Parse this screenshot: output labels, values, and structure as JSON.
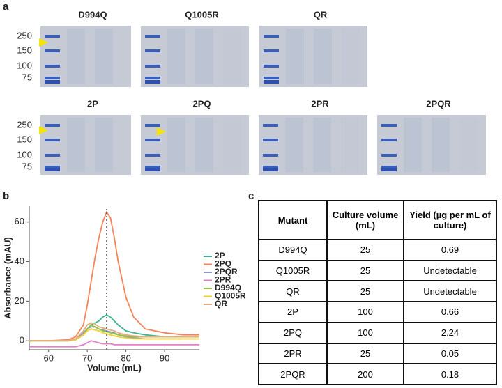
{
  "panel_labels": [
    "a",
    "b",
    "c"
  ],
  "gels": {
    "marker_labels": [
      250,
      150,
      100,
      75
    ],
    "titles": [
      "D994Q",
      "Q1005R",
      "QR",
      "2P",
      "2PQ",
      "2PR",
      "2PQR"
    ]
  },
  "chart_data": {
    "type": "line",
    "xlabel": "Volume (mL)",
    "ylabel": "Absorbance (mAU)",
    "x": [
      55,
      60,
      65,
      67,
      69,
      70,
      71,
      72,
      73,
      74,
      75,
      76,
      77,
      78,
      80,
      82,
      85,
      90,
      95,
      99
    ],
    "series": [
      {
        "name": "2P",
        "color": "#3cb58e",
        "values": [
          0,
          0,
          0,
          0.5,
          3,
          6,
          8,
          9,
          10,
          12,
          13,
          12,
          10,
          8,
          5,
          4,
          3,
          2,
          2,
          2
        ]
      },
      {
        "name": "2PQ",
        "color": "#f4845a",
        "values": [
          0,
          0,
          0.5,
          2,
          8,
          18,
          30,
          42,
          52,
          60,
          65,
          62,
          52,
          40,
          22,
          12,
          6,
          4,
          3,
          3
        ]
      },
      {
        "name": "2PQR",
        "color": "#8a9bd0",
        "values": [
          0,
          0,
          0,
          0.5,
          4,
          6,
          7,
          7,
          6,
          5.5,
          5,
          4.5,
          4,
          3,
          2,
          1.5,
          1,
          1,
          1,
          1
        ]
      },
      {
        "name": "2PR",
        "color": "#e37fc4",
        "values": [
          -3,
          -3,
          -3,
          -3,
          -2,
          -1,
          0,
          -0.5,
          -1,
          -1.5,
          -1.5,
          -1.5,
          -2,
          -2,
          -2,
          -2,
          -2,
          -2,
          -2,
          -2
        ]
      },
      {
        "name": "D994Q",
        "color": "#8fc63e",
        "values": [
          0,
          0,
          0,
          0.5,
          3,
          6,
          8,
          7,
          6,
          5,
          4.5,
          4,
          3.5,
          3,
          2.5,
          2,
          2,
          2,
          2,
          2
        ]
      },
      {
        "name": "Q1005R",
        "color": "#f2cf2e",
        "values": [
          0,
          0,
          0,
          0.5,
          3,
          5,
          6,
          5.5,
          5,
          4,
          3.5,
          3,
          2.5,
          2,
          1.5,
          1,
          1,
          1,
          1,
          1
        ]
      },
      {
        "name": "QR",
        "color": "#e6ad80",
        "values": [
          0,
          0,
          0,
          1,
          5,
          8,
          9,
          8.5,
          7,
          6.5,
          6,
          5.5,
          5,
          4,
          3,
          2.5,
          2,
          2,
          2,
          2
        ]
      }
    ],
    "xlim": [
      55,
      99
    ],
    "ylim": [
      -4.5,
      68
    ],
    "xticks": [
      60,
      70,
      80,
      90
    ],
    "yticks": [
      0,
      20,
      40,
      60
    ],
    "vline": 75
  },
  "table": {
    "header": [
      "Mutant",
      "Culture volume (mL)",
      "Yield (µg per mL of culture)"
    ],
    "rows": [
      [
        "D994Q",
        "25",
        "0.69"
      ],
      [
        "Q1005R",
        "25",
        "Undetectable"
      ],
      [
        "QR",
        "25",
        "Undetectable"
      ],
      [
        "2P",
        "100",
        "0.66"
      ],
      [
        "2PQ",
        "100",
        "2.24"
      ],
      [
        "2PR",
        "25",
        "0.05"
      ],
      [
        "2PQR",
        "200",
        "0.18"
      ]
    ]
  }
}
